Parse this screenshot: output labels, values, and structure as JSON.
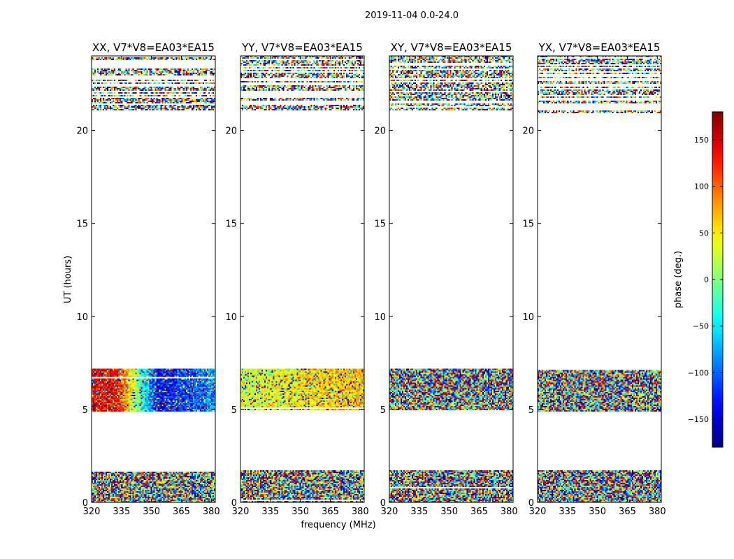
{
  "figure_title": "2019-11-04 0.0-24.0",
  "x_axis_label": "frequency (MHz)",
  "y_axis_label": "UT (hours)",
  "colorbar": {
    "label": "phase (deg.)",
    "ticks": [
      150,
      100,
      50,
      0,
      -50,
      -100,
      -150
    ],
    "tick_labels": [
      "150",
      "100",
      "50",
      "0",
      "−50",
      "−100",
      "−150"
    ],
    "range": [
      -180,
      180
    ],
    "colormap": "jet"
  },
  "chart_data": [
    {
      "type": "heatmap",
      "title": "XX, V7*V8=EA03*EA15",
      "x_ticks": [
        320,
        335,
        350,
        365,
        380
      ],
      "y_ticks": [
        0,
        5,
        10,
        15,
        20
      ],
      "xlim": [
        320,
        382
      ],
      "ylim": [
        0,
        24
      ],
      "data_bands_hours": [
        [
          0,
          1.7
        ],
        [
          4.9,
          7.2
        ],
        [
          20.9,
          24
        ]
      ],
      "phase_pattern": "coherent: red/orange at low frequency, blue at mid frequency during 5-7.2 h"
    },
    {
      "type": "heatmap",
      "title": "YY, V7*V8=EA03*EA15",
      "x_ticks": [
        320,
        335,
        350,
        365,
        380
      ],
      "y_ticks": [
        0,
        5,
        10,
        15,
        20
      ],
      "xlim": [
        320,
        382
      ],
      "ylim": [
        0,
        24
      ],
      "data_bands_hours": [
        [
          0,
          1.7
        ],
        [
          4.9,
          7.2
        ],
        [
          20.9,
          24
        ]
      ],
      "phase_pattern": "coherent: green/yellow near 0-50 deg during 5-7.2 h"
    },
    {
      "type": "heatmap",
      "title": "XY, V7*V8=EA03*EA15",
      "x_ticks": [
        320,
        335,
        350,
        365,
        380
      ],
      "y_ticks": [
        0,
        5,
        10,
        15,
        20
      ],
      "xlim": [
        320,
        382
      ],
      "ylim": [
        0,
        24
      ],
      "data_bands_hours": [
        [
          0,
          1.7
        ],
        [
          4.9,
          7.2
        ],
        [
          20.9,
          24
        ]
      ],
      "phase_pattern": "noise"
    },
    {
      "type": "heatmap",
      "title": "YX, V7*V8=EA03*EA15",
      "x_ticks": [
        320,
        335,
        350,
        365,
        380
      ],
      "y_ticks": [
        0,
        5,
        10,
        15,
        20
      ],
      "xlim": [
        320,
        382
      ],
      "ylim": [
        0,
        24
      ],
      "data_bands_hours": [
        [
          0,
          1.7
        ],
        [
          4.9,
          7.2
        ],
        [
          20.9,
          24
        ]
      ],
      "phase_pattern": "noise"
    }
  ]
}
